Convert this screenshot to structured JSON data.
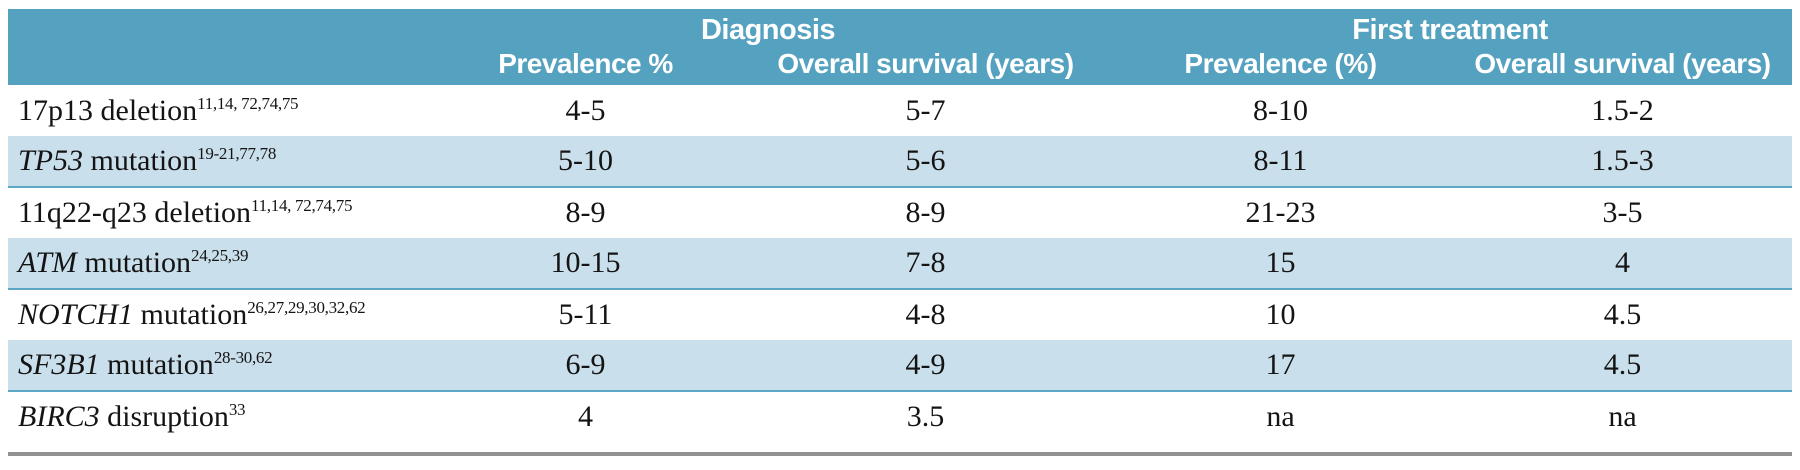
{
  "table": {
    "groups": [
      {
        "label": "Diagnosis"
      },
      {
        "label": "First treatment"
      }
    ],
    "columns": [
      "Prevalence %",
      "Overall survival (years)",
      "Prevalence (%)",
      "Overall survival (years)"
    ],
    "rows": [
      {
        "name": "17p13",
        "suffix": " deletion",
        "sup": "11,14, 72,74,75",
        "values": [
          "4-5",
          "5-7",
          "8-10",
          "1.5-2"
        ]
      },
      {
        "name": "TP53",
        "suffix": " mutation",
        "sup": "19-21,77,78",
        "values": [
          "5-10",
          "5-6",
          "8-11",
          "1.5-3"
        ]
      },
      {
        "name": "11q22-q23",
        "suffix": " deletion",
        "sup": "11,14, 72,74,75",
        "values": [
          "8-9",
          "8-9",
          "21-23",
          "3-5"
        ]
      },
      {
        "name": "ATM",
        "suffix": " mutation",
        "sup": "24,25,39",
        "values": [
          "10-15",
          "7-8",
          "15",
          "4"
        ]
      },
      {
        "name": "NOTCH1",
        "suffix": " mutation",
        "sup": "26,27,29,30,32,62",
        "values": [
          "5-11",
          "4-8",
          "10",
          "4.5"
        ]
      },
      {
        "name": "SF3B1",
        "suffix": " mutation",
        "sup": "28-30,62",
        "values": [
          "6-9",
          "4-9",
          "17",
          "4.5"
        ]
      },
      {
        "name": "BIRC3",
        "suffix": " disruption",
        "sup": "33",
        "values": [
          "4",
          "3.5",
          "na",
          "na"
        ]
      }
    ]
  },
  "colors": {
    "header_bg": "#55a2c0",
    "header_text": "#ffffff",
    "row_alt_bg": "#cadfec",
    "row_alt_border": "#5ba7c4",
    "bottom_rule": "#8f9193",
    "body_text": "#141414"
  }
}
